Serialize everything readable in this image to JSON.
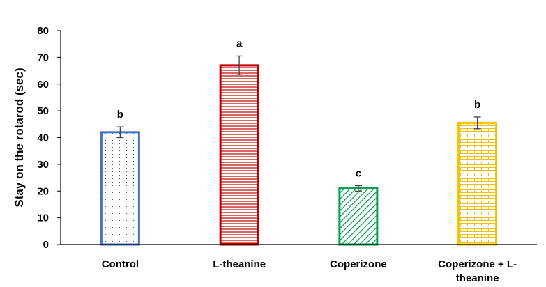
{
  "chart_data": {
    "type": "bar",
    "categories": [
      "Control",
      "L-theanine",
      "Coperizone",
      "Coperizone + L-theanine"
    ],
    "category_label_lines": [
      [
        "Control"
      ],
      [
        "L-theanine"
      ],
      [
        "Coperizone"
      ],
      [
        "Coperizone + L-",
        "theanine"
      ]
    ],
    "values": [
      42,
      67,
      21,
      45.5
    ],
    "errors": [
      2,
      3.5,
      1,
      2.2
    ],
    "significance_letters": [
      "b",
      "a",
      "c",
      "b"
    ],
    "colors": [
      "#4472C4",
      "#C00000",
      "#00A050",
      "#F2C200"
    ],
    "patterns": [
      "dots",
      "horizontal-lines",
      "diagonal-lines",
      "bricks"
    ],
    "title": "",
    "xlabel": "",
    "ylabel": "Stay on the rotarod (sec)",
    "ylim": [
      0,
      80
    ],
    "yticks": [
      0,
      10,
      20,
      30,
      40,
      50,
      60,
      70,
      80
    ],
    "grid": false,
    "legend": false
  }
}
